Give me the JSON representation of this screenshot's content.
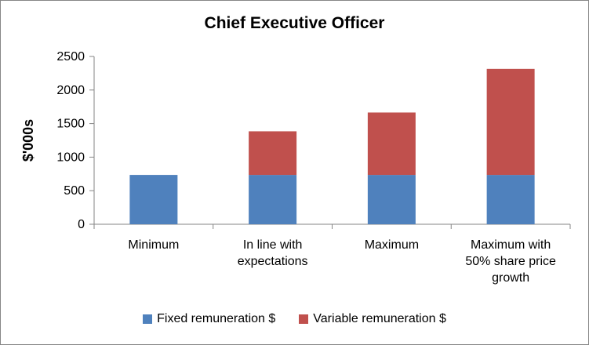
{
  "chart_data": {
    "type": "bar",
    "stacked": true,
    "title": "Chief Executive Officer",
    "ylabel": "$'000s",
    "xlabel": "",
    "ylim": [
      0,
      2500
    ],
    "yticks": [
      0,
      500,
      1000,
      1500,
      2000,
      2500
    ],
    "grid": false,
    "legend_position": "bottom",
    "categories": [
      [
        "Minimum"
      ],
      [
        "In line with",
        "expectations"
      ],
      [
        "Maximum"
      ],
      [
        "Maximum with",
        "50% share price",
        "growth"
      ]
    ],
    "series": [
      {
        "name": "Fixed remuneration $",
        "color": "#4f81bd",
        "values": [
          735,
          735,
          735,
          735
        ]
      },
      {
        "name": "Variable remuneration $",
        "color": "#c0504d",
        "values": [
          0,
          650,
          930,
          1580
        ]
      }
    ]
  }
}
